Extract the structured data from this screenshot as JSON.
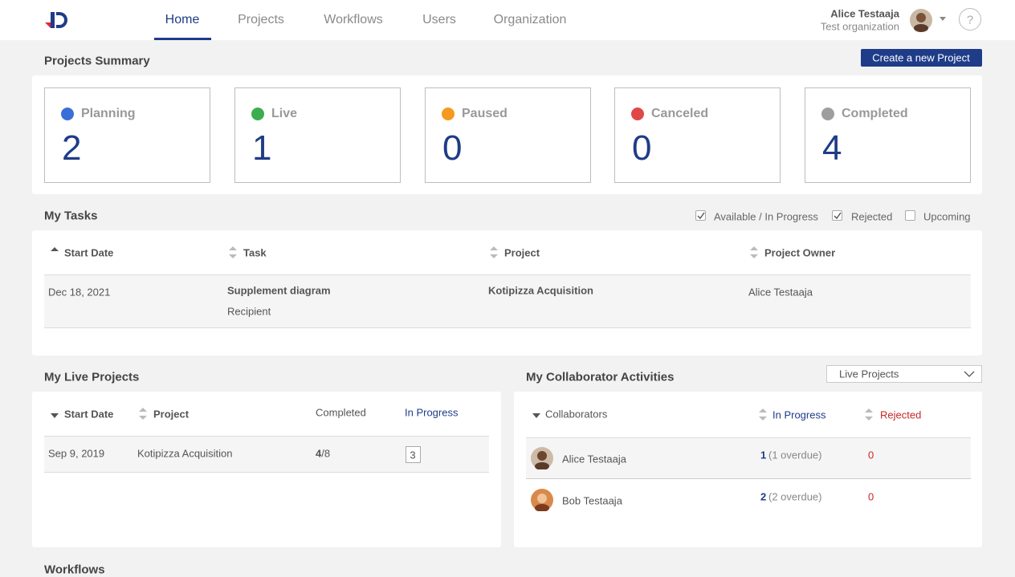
{
  "header": {
    "nav": [
      "Home",
      "Projects",
      "Workflows",
      "Users",
      "Organization"
    ],
    "user_name": "Alice Testaaja",
    "user_org": "Test organization",
    "help": "?"
  },
  "summary": {
    "title": "Projects Summary",
    "create_button": "Create a new Project",
    "cards": [
      {
        "label": "Planning",
        "count": 2,
        "color": "#3b6fd8"
      },
      {
        "label": "Live",
        "count": 1,
        "color": "#3cae4f"
      },
      {
        "label": "Paused",
        "count": 0,
        "color": "#f39a1f"
      },
      {
        "label": "Canceled",
        "count": 0,
        "color": "#e04848"
      },
      {
        "label": "Completed",
        "count": 4,
        "color": "#9e9e9e"
      }
    ]
  },
  "tasks": {
    "title": "My Tasks",
    "filters": [
      {
        "label": "Available / In Progress",
        "checked": true
      },
      {
        "label": "Rejected",
        "checked": true
      },
      {
        "label": "Upcoming",
        "checked": false
      }
    ],
    "columns": [
      "Start Date",
      "Task",
      "Project",
      "Project Owner"
    ],
    "rows": [
      {
        "start_date": "Dec 18, 2021",
        "task": "Supplement diagram",
        "role": "Recipient",
        "project": "Kotipizza Acquisition",
        "owner": "Alice Testaaja"
      }
    ]
  },
  "live_projects": {
    "title": "My Live Projects",
    "columns": [
      "Start Date",
      "Project",
      "Completed",
      "In Progress"
    ],
    "rows": [
      {
        "start_date": "Sep 9, 2019",
        "project": "Kotipizza Acquisition",
        "completed_done": "4",
        "completed_total": "/8",
        "in_progress": 3
      }
    ]
  },
  "collaborators": {
    "title": "My Collaborator Activities",
    "filter": "Live Projects",
    "columns": [
      "Collaborators",
      "In Progress",
      "Rejected"
    ],
    "rows": [
      {
        "name": "Alice Testaaja",
        "in_progress": 1,
        "overdue": "(1 overdue)",
        "rejected": 0
      },
      {
        "name": "Bob Testaaja",
        "in_progress": 2,
        "overdue": "(2 overdue)",
        "rejected": 0
      }
    ]
  },
  "workflows": {
    "title": "Workflows"
  }
}
